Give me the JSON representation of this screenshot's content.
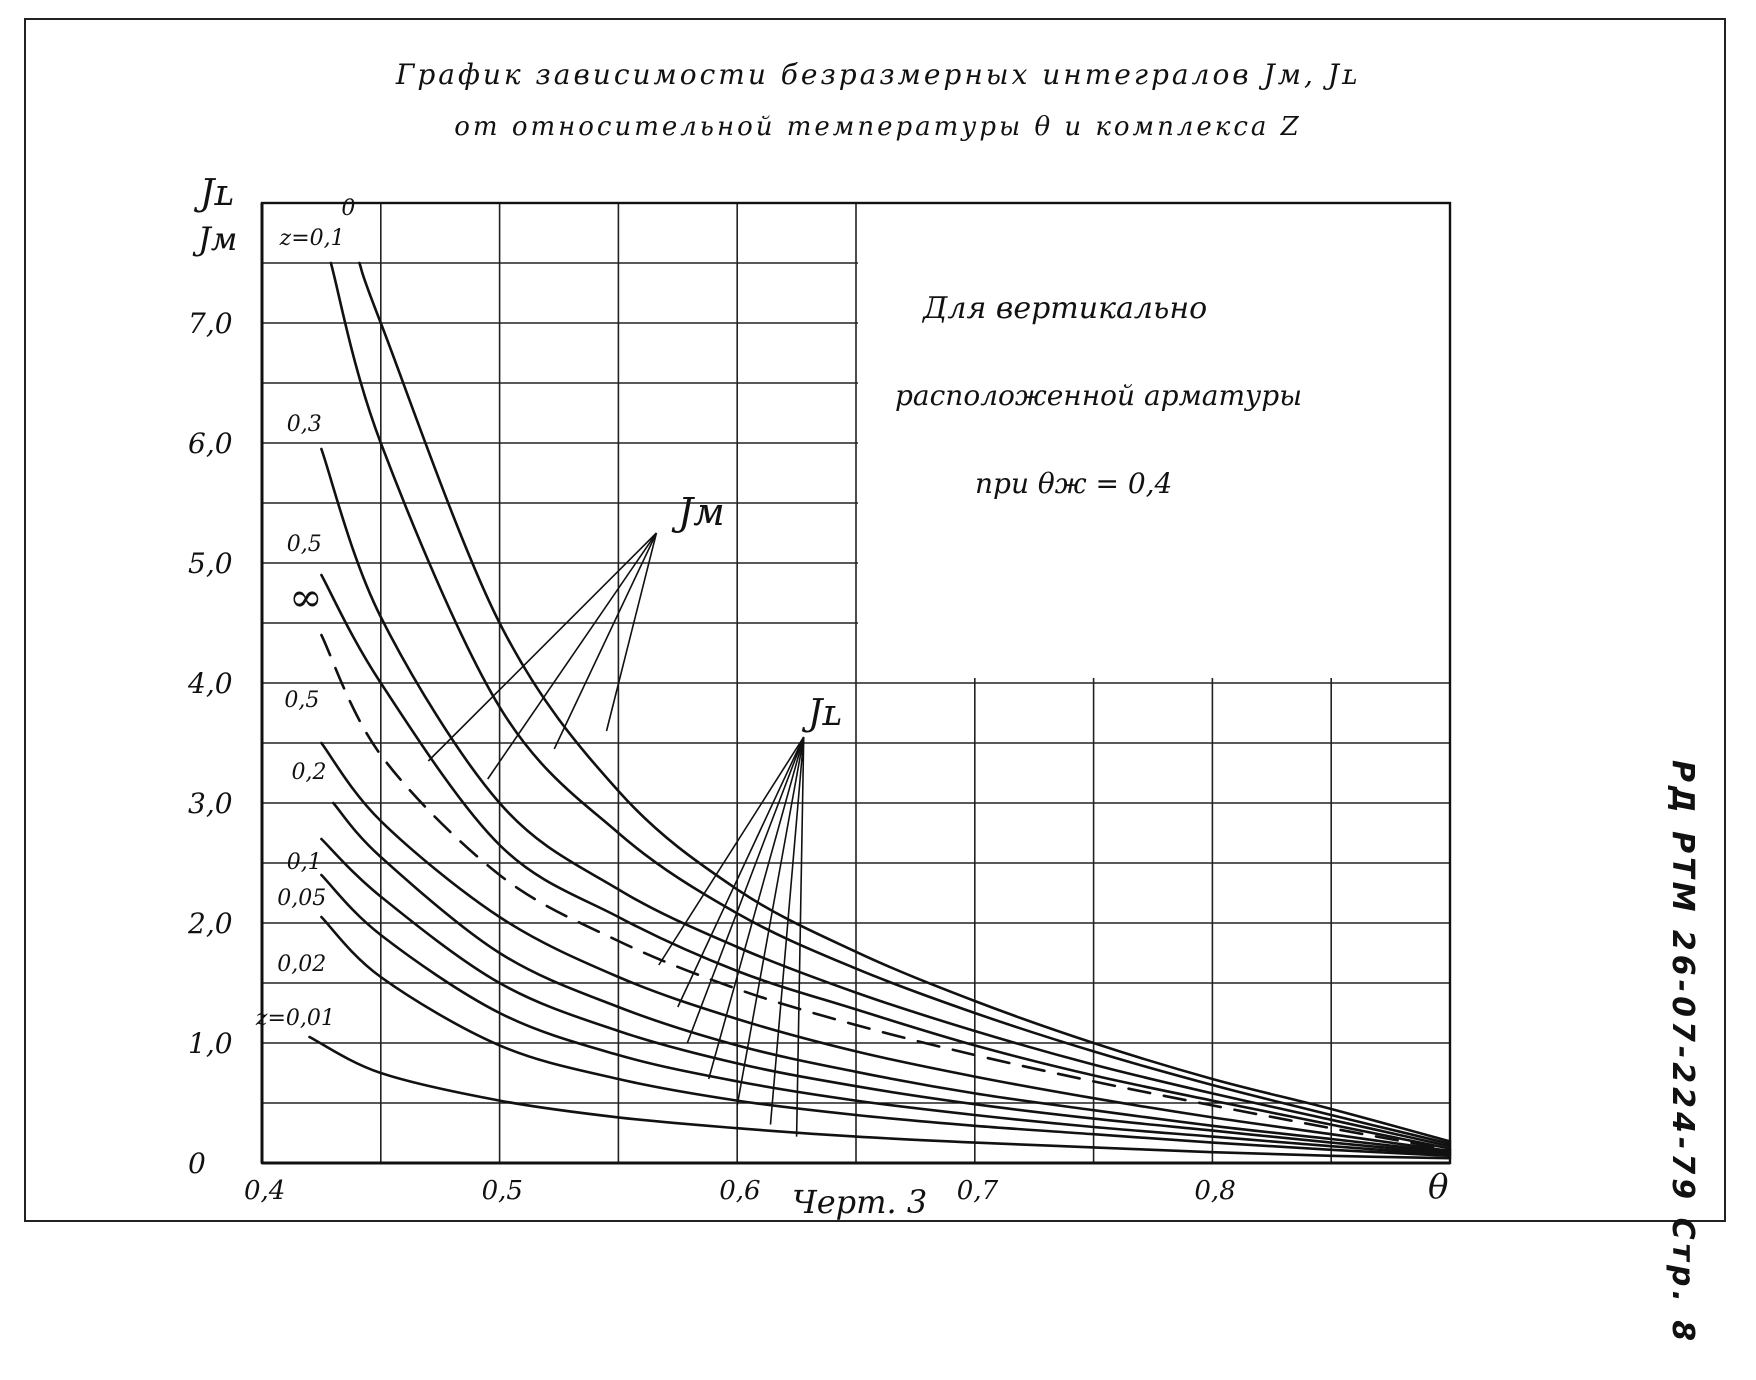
{
  "document": {
    "title_line1": "График  зависимости  безразмерных  интегралов  Jм,  Jʟ",
    "title_line2": "от  относительной  температуры  θ  и  комплекса  Z",
    "caption": "Черт. 3",
    "side_stamp": "РД  РТМ  26-07-224-79  Стр. 8",
    "note_line1": "Для  вертикально",
    "note_line2": "расположенной  арматуры",
    "note_line3": "при  θж  =  0,4",
    "label_jm": "Jм",
    "label_jl": "Jʟ",
    "y_axis_label_top": "Jʟ",
    "y_axis_label_bottom": "Jм",
    "x_axis_label": "θ"
  },
  "chart_data": {
    "type": "line",
    "title": "График зависимости безразмерных интегралов Jм, Jʟ от относительной температуры θ и комплекса Z",
    "xlabel": "θ",
    "ylabel": "Jʟ, Jм",
    "xlim": [
      0.4,
      0.9
    ],
    "ylim": [
      0,
      8.0
    ],
    "x_ticks": [
      {
        "value": 0.4,
        "label": "0,4"
      },
      {
        "value": 0.5,
        "label": "0,5"
      },
      {
        "value": 0.6,
        "label": "0,6"
      },
      {
        "value": 0.7,
        "label": "0,7"
      },
      {
        "value": 0.8,
        "label": "0,8"
      }
    ],
    "y_ticks": [
      {
        "value": 0,
        "label": "0"
      },
      {
        "value": 1.0,
        "label": "1,0"
      },
      {
        "value": 2.0,
        "label": "2,0"
      },
      {
        "value": 3.0,
        "label": "3,0"
      },
      {
        "value": 4.0,
        "label": "4,0"
      },
      {
        "value": 5.0,
        "label": "5,0"
      },
      {
        "value": 6.0,
        "label": "6,0"
      },
      {
        "value": 7.0,
        "label": "7,0"
      }
    ],
    "grid": true,
    "colors": {
      "ink": "#111111",
      "grid": "#222222",
      "paper": "#ffffff"
    },
    "series": [
      {
        "name": "0",
        "group": "Jм",
        "dashed": false,
        "points": [
          [
            0.441,
            7.5
          ],
          [
            0.45,
            7.0
          ],
          [
            0.5,
            4.5
          ],
          [
            0.55,
            3.1
          ],
          [
            0.6,
            2.28
          ],
          [
            0.65,
            1.76
          ],
          [
            0.7,
            1.35
          ],
          [
            0.75,
            1.0
          ],
          [
            0.8,
            0.7
          ],
          [
            0.85,
            0.45
          ],
          [
            0.9,
            0.18
          ]
        ]
      },
      {
        "name": "z=0,1",
        "group": "Jм",
        "dashed": false,
        "points": [
          [
            0.429,
            7.5
          ],
          [
            0.45,
            6.0
          ],
          [
            0.5,
            3.8
          ],
          [
            0.55,
            2.75
          ],
          [
            0.6,
            2.08
          ],
          [
            0.65,
            1.62
          ],
          [
            0.7,
            1.25
          ],
          [
            0.75,
            0.93
          ],
          [
            0.8,
            0.65
          ],
          [
            0.85,
            0.4
          ],
          [
            0.9,
            0.16
          ]
        ]
      },
      {
        "name": "0,3",
        "group": "Jм",
        "dashed": false,
        "points": [
          [
            0.425,
            5.95
          ],
          [
            0.45,
            4.55
          ],
          [
            0.5,
            3.0
          ],
          [
            0.55,
            2.28
          ],
          [
            0.6,
            1.8
          ],
          [
            0.65,
            1.42
          ],
          [
            0.7,
            1.1
          ],
          [
            0.75,
            0.82
          ],
          [
            0.8,
            0.58
          ],
          [
            0.85,
            0.36
          ],
          [
            0.9,
            0.14
          ]
        ]
      },
      {
        "name": "0,5",
        "group": "Jм",
        "dashed": false,
        "points": [
          [
            0.425,
            4.9
          ],
          [
            0.45,
            4.0
          ],
          [
            0.5,
            2.65
          ],
          [
            0.55,
            2.05
          ],
          [
            0.6,
            1.6
          ],
          [
            0.65,
            1.28
          ],
          [
            0.7,
            0.98
          ],
          [
            0.75,
            0.73
          ],
          [
            0.8,
            0.52
          ],
          [
            0.85,
            0.32
          ],
          [
            0.9,
            0.12
          ]
        ]
      },
      {
        "name": "∞",
        "group": "Jм",
        "dashed": true,
        "points": [
          [
            0.425,
            4.4
          ],
          [
            0.45,
            3.4
          ],
          [
            0.5,
            2.4
          ],
          [
            0.55,
            1.85
          ],
          [
            0.6,
            1.45
          ],
          [
            0.65,
            1.15
          ],
          [
            0.7,
            0.9
          ],
          [
            0.75,
            0.68
          ],
          [
            0.8,
            0.48
          ],
          [
            0.85,
            0.29
          ],
          [
            0.9,
            0.11
          ]
        ]
      },
      {
        "name": "0,5",
        "group": "Jʟ",
        "dashed": false,
        "points": [
          [
            0.425,
            3.5
          ],
          [
            0.45,
            2.85
          ],
          [
            0.5,
            2.05
          ],
          [
            0.55,
            1.55
          ],
          [
            0.6,
            1.2
          ],
          [
            0.65,
            0.93
          ],
          [
            0.7,
            0.72
          ],
          [
            0.75,
            0.54
          ],
          [
            0.8,
            0.38
          ],
          [
            0.85,
            0.24
          ],
          [
            0.9,
            0.1
          ]
        ]
      },
      {
        "name": "0,2",
        "group": "Jʟ",
        "dashed": false,
        "points": [
          [
            0.43,
            3.0
          ],
          [
            0.45,
            2.55
          ],
          [
            0.5,
            1.75
          ],
          [
            0.55,
            1.3
          ],
          [
            0.6,
            0.98
          ],
          [
            0.65,
            0.76
          ],
          [
            0.7,
            0.58
          ],
          [
            0.75,
            0.44
          ],
          [
            0.8,
            0.31
          ],
          [
            0.85,
            0.2
          ],
          [
            0.9,
            0.09
          ]
        ]
      },
      {
        "name": "0,1",
        "group": "Jʟ",
        "dashed": false,
        "points": [
          [
            0.425,
            2.7
          ],
          [
            0.45,
            2.22
          ],
          [
            0.5,
            1.5
          ],
          [
            0.55,
            1.1
          ],
          [
            0.6,
            0.83
          ],
          [
            0.65,
            0.64
          ],
          [
            0.7,
            0.49
          ],
          [
            0.75,
            0.37
          ],
          [
            0.8,
            0.27
          ],
          [
            0.85,
            0.17
          ],
          [
            0.9,
            0.08
          ]
        ]
      },
      {
        "name": "0,05",
        "group": "Jʟ",
        "dashed": false,
        "points": [
          [
            0.425,
            2.4
          ],
          [
            0.45,
            1.9
          ],
          [
            0.5,
            1.25
          ],
          [
            0.55,
            0.9
          ],
          [
            0.6,
            0.68
          ],
          [
            0.65,
            0.52
          ],
          [
            0.7,
            0.4
          ],
          [
            0.75,
            0.3
          ],
          [
            0.8,
            0.22
          ],
          [
            0.85,
            0.14
          ],
          [
            0.9,
            0.07
          ]
        ]
      },
      {
        "name": "0,02",
        "group": "Jʟ",
        "dashed": false,
        "points": [
          [
            0.425,
            2.05
          ],
          [
            0.45,
            1.55
          ],
          [
            0.5,
            0.98
          ],
          [
            0.55,
            0.7
          ],
          [
            0.6,
            0.52
          ],
          [
            0.65,
            0.4
          ],
          [
            0.7,
            0.31
          ],
          [
            0.75,
            0.24
          ],
          [
            0.8,
            0.17
          ],
          [
            0.85,
            0.11
          ],
          [
            0.9,
            0.06
          ]
        ]
      },
      {
        "name": "z=0,01",
        "group": "Jʟ",
        "dashed": false,
        "points": [
          [
            0.42,
            1.05
          ],
          [
            0.45,
            0.75
          ],
          [
            0.5,
            0.52
          ],
          [
            0.55,
            0.38
          ],
          [
            0.6,
            0.29
          ],
          [
            0.65,
            0.22
          ],
          [
            0.7,
            0.17
          ],
          [
            0.75,
            0.13
          ],
          [
            0.8,
            0.09
          ],
          [
            0.85,
            0.06
          ],
          [
            0.9,
            0.04
          ]
        ]
      }
    ],
    "curve_labels": [
      {
        "text": "0",
        "x": 0.441,
        "y": 7.9
      },
      {
        "text": "z=0,1",
        "x": 0.415,
        "y": 7.65
      },
      {
        "text": "0,3",
        "x": 0.418,
        "y": 6.1
      },
      {
        "text": "0,5",
        "x": 0.418,
        "y": 5.1
      },
      {
        "text": "∞",
        "x": 0.419,
        "y": 4.6
      },
      {
        "text": "0,5",
        "x": 0.417,
        "y": 3.8
      },
      {
        "text": "0,2",
        "x": 0.42,
        "y": 3.2
      },
      {
        "text": "0,1",
        "x": 0.418,
        "y": 2.45
      },
      {
        "text": "0,05",
        "x": 0.414,
        "y": 2.15
      },
      {
        "text": "0,02",
        "x": 0.414,
        "y": 1.6
      },
      {
        "text": "z=0,01",
        "x": 0.405,
        "y": 1.15
      }
    ],
    "pointer_jm": {
      "tip": [
        0.566,
        5.25
      ],
      "ends": [
        [
          0.47,
          3.35
        ],
        [
          0.495,
          3.2
        ],
        [
          0.523,
          3.45
        ],
        [
          0.545,
          3.6
        ]
      ]
    },
    "pointer_jl": {
      "tip": [
        0.628,
        3.55
      ],
      "ends": [
        [
          0.567,
          1.65
        ],
        [
          0.575,
          1.3
        ],
        [
          0.579,
          1.0
        ],
        [
          0.588,
          0.7
        ],
        [
          0.6,
          0.48
        ],
        [
          0.614,
          0.32
        ],
        [
          0.625,
          0.22
        ]
      ]
    }
  }
}
